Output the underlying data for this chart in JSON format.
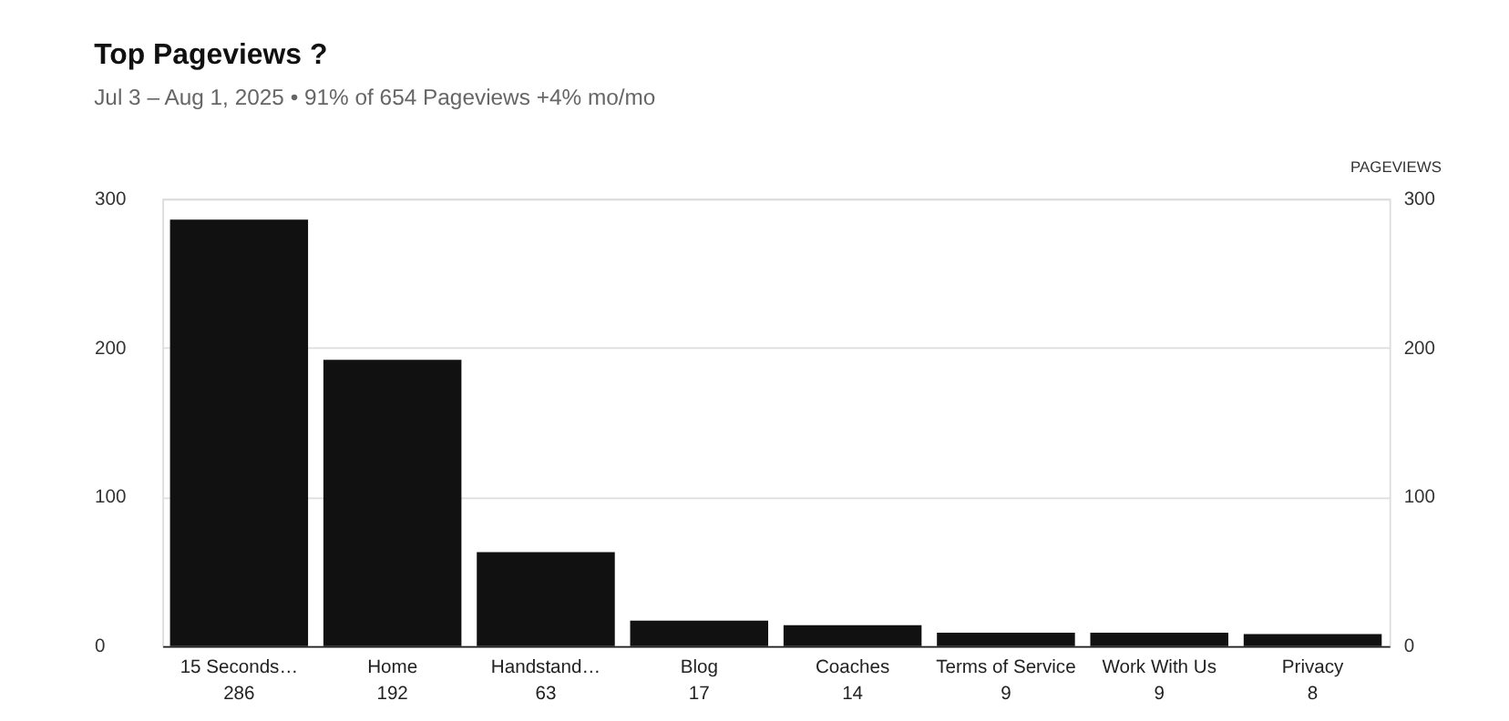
{
  "chart_data": {
    "type": "bar",
    "title": "Top Pageviews ?",
    "subtitle": "Jul 3 – Aug 1, 2025 • 91% of 654 Pageviews +4% mo/mo",
    "categories": [
      "15 Seconds…",
      "Home",
      "Handstand…",
      "Blog",
      "Coaches",
      "Terms of Service",
      "Work With Us",
      "Privacy"
    ],
    "series": [
      {
        "color": "#111111",
        "values": [
          286,
          192,
          63,
          17,
          14,
          9,
          9,
          8
        ]
      }
    ],
    "data_labels": true,
    "ylim": [
      0,
      300
    ],
    "yticks": [
      0,
      100,
      200,
      300
    ],
    "y2label": "PAGEVIEWS",
    "y2lim": [
      0,
      300
    ],
    "y2ticks": [
      0,
      100,
      200,
      300
    ],
    "grid": "y"
  }
}
